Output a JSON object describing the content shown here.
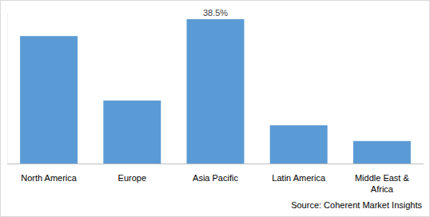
{
  "chart_data": {
    "type": "bar",
    "categories": [
      "North America",
      "Europe",
      "Asia Pacific",
      "Latin America",
      "Middle East & Africa"
    ],
    "values": [
      34.0,
      16.8,
      38.5,
      10.2,
      6.0
    ],
    "value_labels": [
      null,
      null,
      "38.5%",
      null,
      null
    ],
    "data_labels": true,
    "color": "#5b9bd5",
    "ylim": [
      0,
      40
    ],
    "tick_labels": "x",
    "grid": false,
    "source": "Source: Coherent Market Insights"
  }
}
